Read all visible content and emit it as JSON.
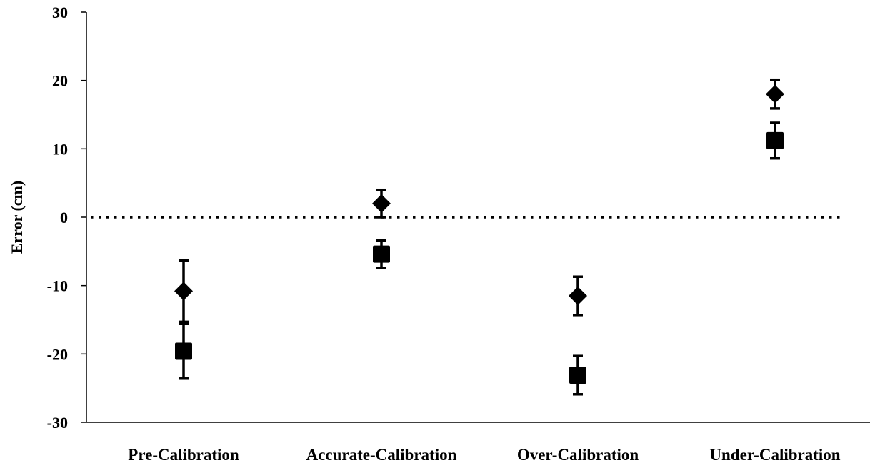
{
  "chart_data": {
    "type": "scatter",
    "title": "",
    "xlabel": "",
    "ylabel": "Error (cm)",
    "categories": [
      "Pre-Calibration",
      "Accurate-Calibration",
      "Over-Calibration",
      "Under-Calibration"
    ],
    "ylim": [
      -30,
      30
    ],
    "yticks": [
      30,
      20,
      10,
      0,
      -10,
      -20,
      -30
    ],
    "reference_line": {
      "y": 0,
      "style": "dotted"
    },
    "grid": false,
    "legend": "none",
    "series": [
      {
        "marker": "diamond",
        "values": [
          -10.8,
          2.0,
          -11.5,
          18.0
        ],
        "error": [
          4.5,
          2.0,
          2.8,
          2.1
        ]
      },
      {
        "marker": "square",
        "values": [
          -19.6,
          -5.4,
          -23.1,
          11.2
        ],
        "error": [
          4.0,
          2.0,
          2.8,
          2.6
        ]
      }
    ],
    "color": "#000000"
  }
}
